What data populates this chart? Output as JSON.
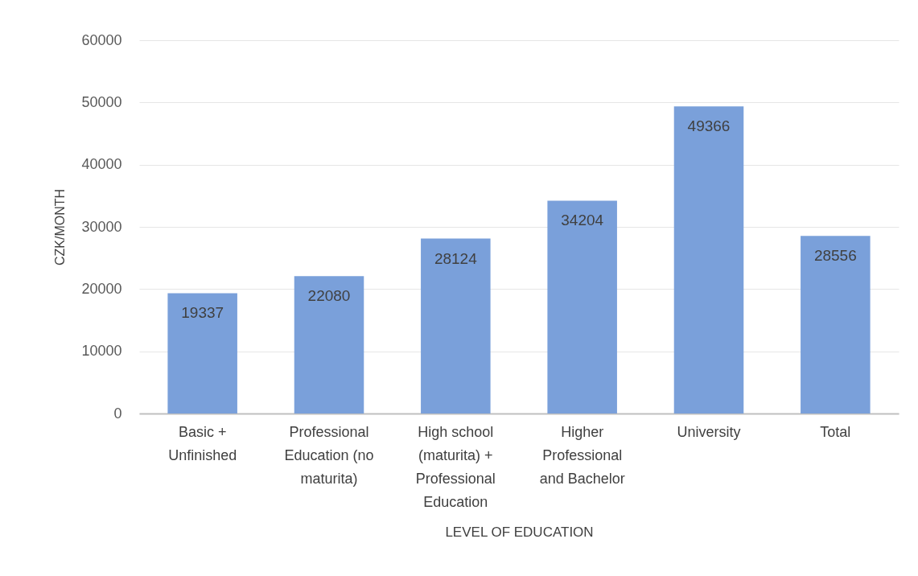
{
  "chart_data": {
    "type": "bar",
    "xlabel": "LEVEL OF EDUCATION",
    "ylabel": "CZK/MONTH",
    "categories": [
      "Basic + Unfinished",
      "Professional Education (no maturita)",
      "High school (maturita) + Professional Education",
      "Higher Professional and Bachelor",
      "University",
      "Total"
    ],
    "values": [
      19337,
      22080,
      28124,
      34204,
      49366,
      28556
    ],
    "color": "#7aa0da",
    "ylim": [
      0,
      60000
    ],
    "yticks": [
      0,
      10000,
      20000,
      30000,
      40000,
      50000,
      60000
    ],
    "grid": "y",
    "data_labels": true
  }
}
